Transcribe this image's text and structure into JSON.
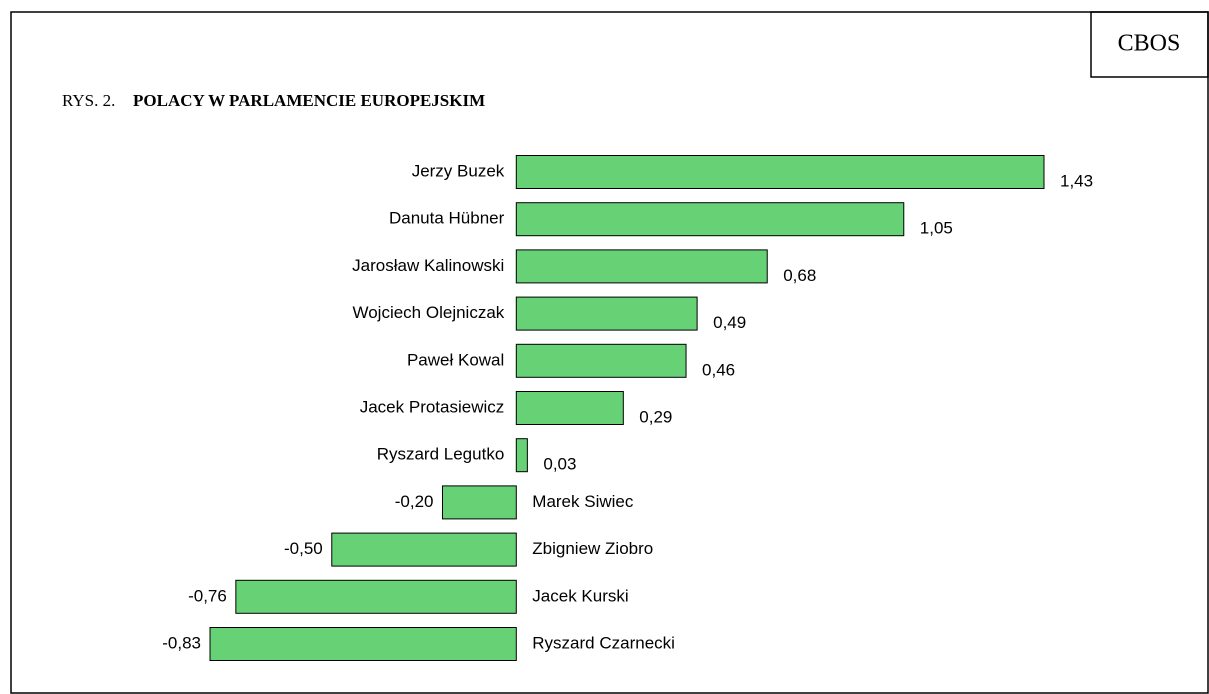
{
  "chart_data": {
    "type": "bar",
    "orientation": "horizontal",
    "source": "CBOS",
    "figure_label": "RYS. 2.",
    "title": "POLACY W PARLAMENCIE EUROPEJSKIM",
    "categories": [
      "Jerzy Buzek",
      "Danuta Hübner",
      "Jarosław Kalinowski",
      "Wojciech Olejniczak",
      "Paweł Kowal",
      "Jacek Protasiewicz",
      "Ryszard Legutko",
      "Marek Siwiec",
      "Zbigniew Ziobro",
      "Jacek Kurski",
      "Ryszard Czarnecki"
    ],
    "values": [
      1.43,
      1.05,
      0.68,
      0.49,
      0.46,
      0.29,
      0.03,
      -0.2,
      -0.5,
      -0.76,
      -0.83
    ],
    "value_labels": [
      "1,43",
      "1,05",
      "0,68",
      "0,49",
      "0,46",
      "0,29",
      "0,03",
      "-0,20",
      "-0,50",
      "-0,76",
      "-0,83"
    ],
    "color": "#66d275"
  }
}
